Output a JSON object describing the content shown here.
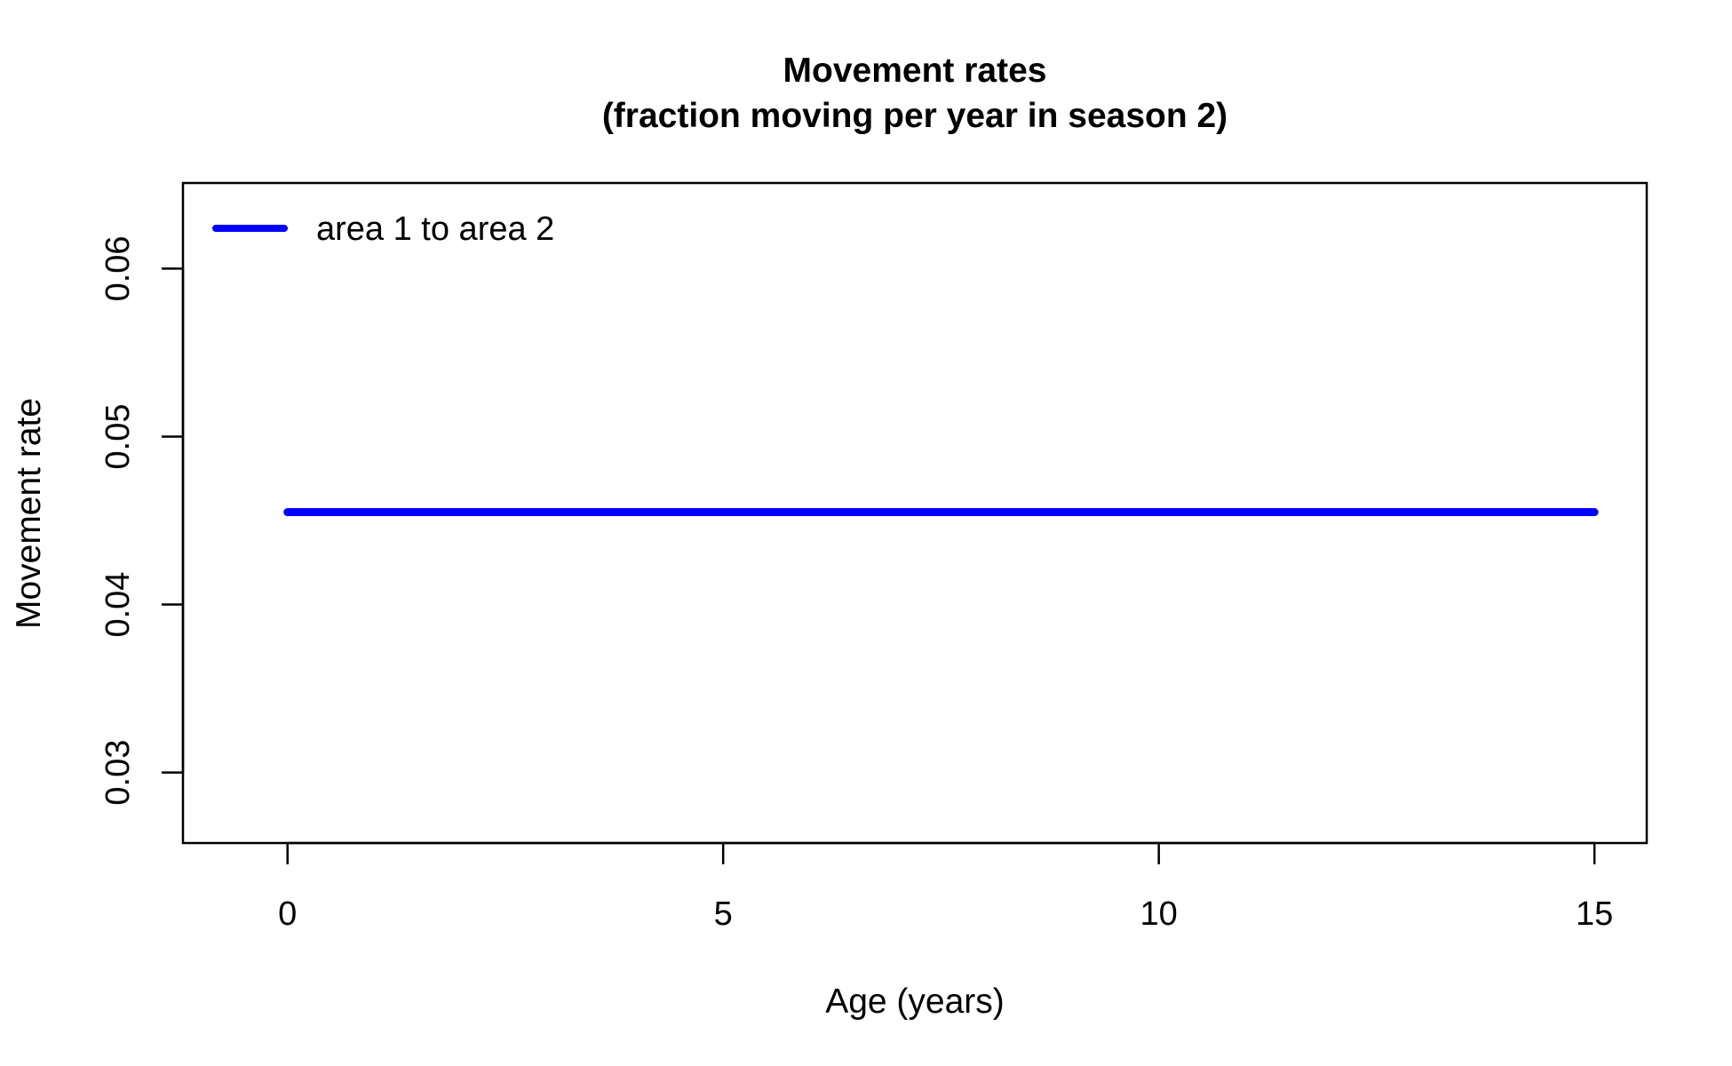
{
  "chart_data": {
    "type": "line",
    "title": "Movement rates",
    "subtitle": "(fraction moving per year in season 2)",
    "xlabel": "Age (years)",
    "ylabel": "Movement rate",
    "xlim": [
      -1.2,
      15.6
    ],
    "ylim": [
      0.0258,
      0.0651
    ],
    "x_ticks": [
      0,
      5,
      10,
      15
    ],
    "x_tick_labels": [
      "0",
      "5",
      "10",
      "15"
    ],
    "y_ticks": [
      0.03,
      0.04,
      0.05,
      0.06
    ],
    "y_tick_labels": [
      "0.03",
      "0.04",
      "0.05",
      "0.06"
    ],
    "grid": false,
    "legend_position": "top-left",
    "series": [
      {
        "name": "area 1 to area 2",
        "color": "#0000ff",
        "x": [
          0,
          1,
          2,
          3,
          4,
          5,
          6,
          7,
          8,
          9,
          10,
          11,
          12,
          13,
          14,
          15
        ],
        "y": [
          0.0455,
          0.0455,
          0.0455,
          0.0455,
          0.0455,
          0.0455,
          0.0455,
          0.0455,
          0.0455,
          0.0455,
          0.0455,
          0.0455,
          0.0455,
          0.0455,
          0.0455,
          0.0455
        ]
      }
    ]
  }
}
